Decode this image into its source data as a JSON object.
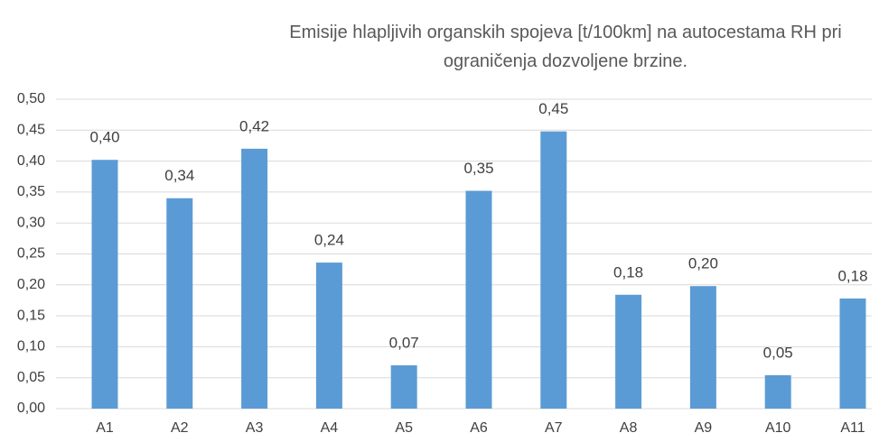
{
  "chart_data": {
    "type": "bar",
    "title": "Emisije hlapljivih organskih spojeva [t/100km] na autocestama RH pri ograničenja dozvoljene brzine.",
    "categories": [
      "A1",
      "A2",
      "A3",
      "A4",
      "A5",
      "A6",
      "A7",
      "A8",
      "A9",
      "A10",
      "A11"
    ],
    "values": [
      0.402,
      0.34,
      0.42,
      0.236,
      0.07,
      0.352,
      0.448,
      0.184,
      0.198,
      0.054,
      0.178
    ],
    "value_labels": [
      "0,40",
      "0,34",
      "0,42",
      "0,24",
      "0,07",
      "0,35",
      "0,45",
      "0,18",
      "0,20",
      "0,05",
      "0,18"
    ],
    "color": "#5b9bd5",
    "ylim": [
      0,
      0.5
    ],
    "yticks": [
      {
        "value": 0,
        "label": "0,00"
      },
      {
        "value": 0.05,
        "label": "0,05"
      },
      {
        "value": 0.1,
        "label": "0,10"
      },
      {
        "value": 0.15,
        "label": "0,15"
      },
      {
        "value": 0.2,
        "label": "0,20"
      },
      {
        "value": 0.25,
        "label": "0,25"
      },
      {
        "value": 0.3,
        "label": "0,30"
      },
      {
        "value": 0.35,
        "label": "0,35"
      },
      {
        "value": 0.4,
        "label": "0,40"
      },
      {
        "value": 0.45,
        "label": "0,45"
      },
      {
        "value": 0.5,
        "label": "0,50"
      }
    ],
    "grid": true
  }
}
